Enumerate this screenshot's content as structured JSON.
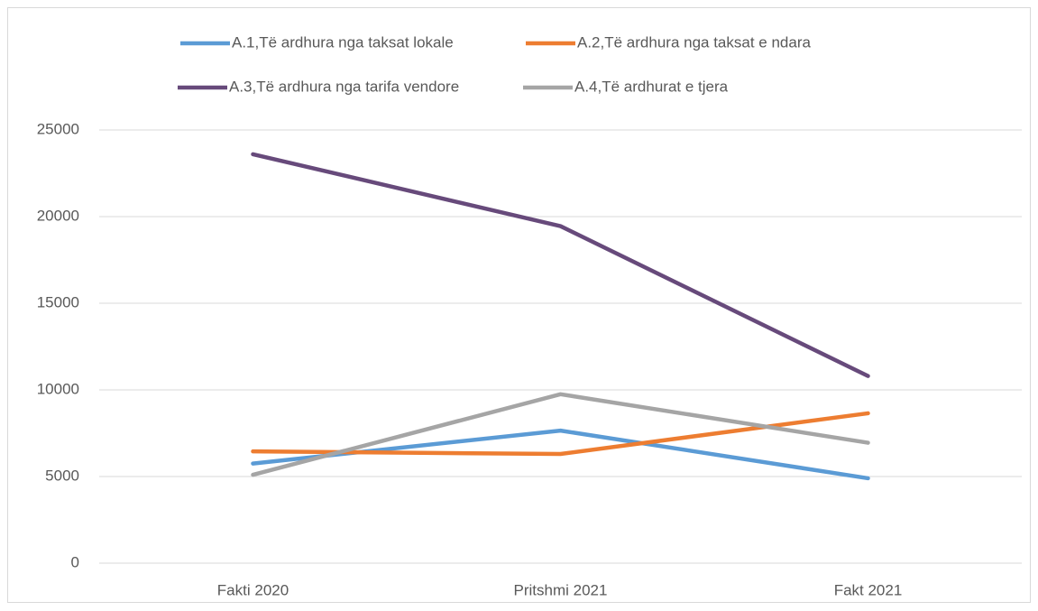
{
  "chart_data": {
    "type": "line",
    "categories": [
      "Fakti 2020",
      "Pritshmi 2021",
      "Fakt 2021"
    ],
    "series": [
      {
        "name": "A.1,Të ardhura nga taksat lokale",
        "color": "#5b9bd5",
        "values": [
          5750,
          7650,
          4900
        ]
      },
      {
        "name": "A.2,Të ardhura nga taksat e ndara",
        "color": "#ed7d31",
        "values": [
          6450,
          6300,
          8650
        ]
      },
      {
        "name": "A.3,Të ardhura nga tarifa vendore",
        "color": "#674a7b",
        "values": [
          23600,
          19450,
          10800
        ]
      },
      {
        "name": "A.4,Të ardhurat e tjera",
        "color": "#a5a5a5",
        "values": [
          5100,
          9750,
          6950
        ]
      }
    ],
    "ylim": [
      0,
      25000
    ],
    "yticks": [
      0,
      5000,
      10000,
      15000,
      20000,
      25000
    ],
    "grid": true,
    "legend": "top"
  }
}
